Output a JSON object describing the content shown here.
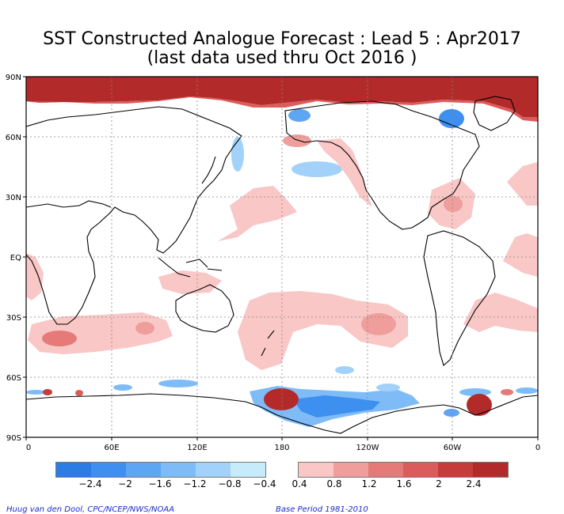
{
  "title": {
    "line1": "SST Constructed Analogue Forecast : Lead 5 : Apr2017",
    "line2": "(last data used thru Oct 2016 )"
  },
  "map": {
    "lat_labels": [
      "90N",
      "60N",
      "30N",
      "EQ",
      "30S",
      "60S",
      "90S"
    ],
    "lon_labels": [
      "0",
      "60E",
      "120E",
      "180",
      "120W",
      "60W",
      "0"
    ],
    "projection": "equirectangular, 0 to 360E, 90S to 90N",
    "grid": "dotted gridlines every 30 degrees"
  },
  "colorbar": {
    "neg_colors": [
      "#2b7ce4",
      "#3d8ff0",
      "#5ea5f4",
      "#7fbcf7",
      "#a2d2fa",
      "#c6ecfc"
    ],
    "pos_colors": [
      "#f8c7c6",
      "#ef9e9c",
      "#e57a78",
      "#db5d5b",
      "#c63c3b",
      "#b32a2a"
    ],
    "neg_labels": [
      "−2.4",
      "−2",
      "−1.6",
      "−1.2",
      "−0.8",
      "−0.4"
    ],
    "pos_labels": [
      "0.4",
      "0.8",
      "1.2",
      "1.6",
      "2",
      "2.4"
    ]
  },
  "footer": {
    "credit": "Huug van den Dool, CPC/NCEP/NWS/NOAA",
    "base_period": "Base Period 1981-2010"
  },
  "colors": {
    "land_outline": "#000000",
    "warm": "#ef9e9c",
    "warm_strong": "#b32a2a",
    "cool": "#7fbcf7",
    "cool_strong": "#2b7ce4"
  }
}
